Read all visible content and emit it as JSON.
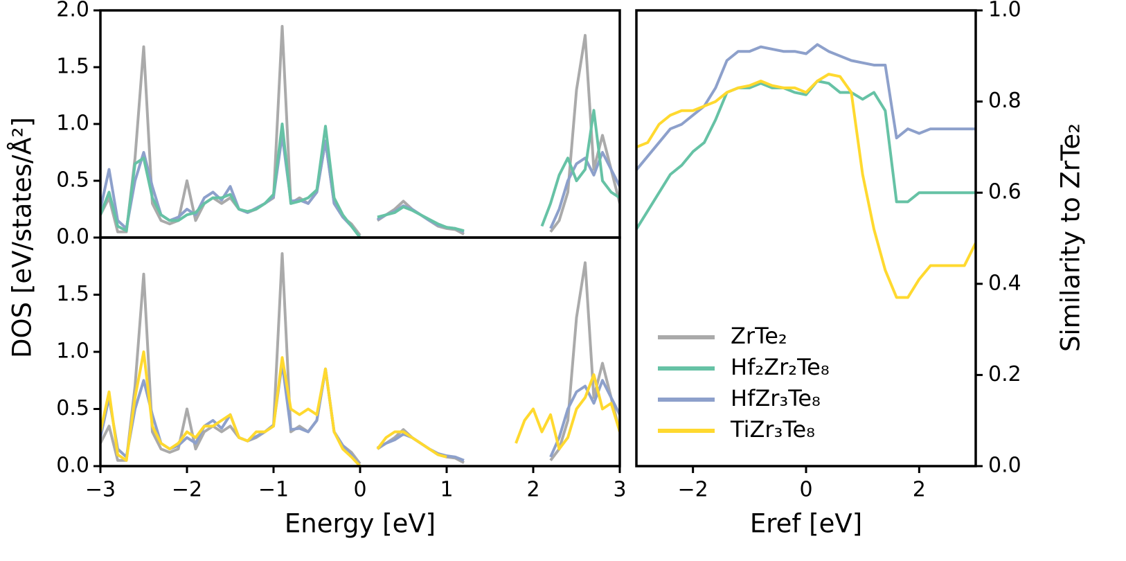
{
  "chart_data": [
    {
      "type": "line",
      "x": [
        -3,
        -2.9,
        -2.8,
        -2.7,
        -2.6,
        -2.5,
        -2.4,
        -2.3,
        -2.2,
        -2.1,
        -2,
        -1.9,
        -1.8,
        -1.7,
        -1.6,
        -1.5,
        -1.4,
        -1.3,
        -1.2,
        -1.1,
        -1,
        -0.9,
        -0.8,
        -0.7,
        -0.6,
        -0.5,
        -0.4,
        -0.3,
        -0.2,
        -0.1,
        0,
        0.1,
        0.2,
        0.3,
        0.4,
        0.5,
        0.6,
        0.7,
        0.8,
        0.9,
        1,
        1.1,
        1.2,
        1.3,
        1.4,
        1.5,
        1.6,
        1.7,
        1.8,
        1.9,
        2,
        2.1,
        2.2,
        2.3,
        2.4,
        2.5,
        2.6,
        2.7,
        2.8,
        2.9,
        3
      ],
      "series": [
        {
          "color": "#aaaaaa",
          "values": [
            0.2,
            0.35,
            0.05,
            0.05,
            0.7,
            1.68,
            0.3,
            0.15,
            0.12,
            0.15,
            0.5,
            0.15,
            0.3,
            0.35,
            0.3,
            0.35,
            0.25,
            0.22,
            0.25,
            0.3,
            0.35,
            1.86,
            0.3,
            0.35,
            0.3,
            0.4,
            0.85,
            0.3,
            0.18,
            0.12,
            0.02,
            null,
            0.15,
            0.2,
            0.25,
            0.32,
            0.25,
            0.2,
            0.15,
            0.1,
            0.08,
            0.07,
            0.03,
            null,
            null,
            null,
            null,
            null,
            null,
            null,
            null,
            null,
            0.05,
            0.15,
            0.4,
            1.3,
            1.78,
            0.6,
            0.9,
            0.6,
            0.3
          ]
        },
        {
          "color": "#8da0cb",
          "values": [
            0.25,
            0.6,
            0.15,
            0.08,
            0.5,
            0.75,
            0.45,
            0.2,
            0.15,
            0.18,
            0.25,
            0.2,
            0.35,
            0.4,
            0.33,
            0.45,
            0.25,
            0.22,
            0.26,
            0.3,
            0.36,
            0.9,
            0.32,
            0.33,
            0.3,
            0.4,
            0.85,
            0.3,
            0.18,
            0.1,
            0,
            null,
            0.16,
            0.2,
            0.23,
            0.28,
            0.25,
            0.2,
            0.15,
            0.11,
            0.09,
            0.08,
            0.05,
            null,
            null,
            null,
            null,
            null,
            null,
            null,
            null,
            null,
            0.08,
            0.25,
            0.5,
            0.65,
            0.7,
            0.55,
            0.75,
            0.6,
            0.45
          ]
        },
        {
          "color": "#66c2a5",
          "values": [
            0.2,
            0.4,
            0.1,
            0.06,
            0.65,
            0.7,
            0.35,
            0.2,
            0.15,
            0.15,
            0.2,
            0.22,
            0.3,
            0.35,
            0.35,
            0.38,
            0.25,
            0.23,
            0.25,
            0.3,
            0.38,
            1,
            0.3,
            0.32,
            0.35,
            0.42,
            0.98,
            0.35,
            0.2,
            0.1,
            0,
            null,
            0.18,
            0.2,
            0.22,
            0.27,
            0.24,
            0.2,
            0.16,
            0.12,
            0.09,
            0.08,
            0.06,
            null,
            null,
            null,
            null,
            null,
            null,
            null,
            null,
            0.1,
            0.3,
            0.55,
            0.7,
            0.5,
            0.6,
            1.12,
            0.5,
            0.4,
            0.35
          ]
        }
      ],
      "xlim": [
        -3,
        3
      ],
      "ylim": [
        0,
        2
      ],
      "yticks": [
        {
          "value": 0,
          "label": "0.0"
        },
        {
          "value": 0.5,
          "label": "0.5"
        },
        {
          "value": 1,
          "label": "1.0"
        },
        {
          "value": 1.5,
          "label": "1.5"
        },
        {
          "value": 2,
          "label": "2.0"
        }
      ]
    },
    {
      "type": "line",
      "x": [
        -3,
        -2.9,
        -2.8,
        -2.7,
        -2.6,
        -2.5,
        -2.4,
        -2.3,
        -2.2,
        -2.1,
        -2,
        -1.9,
        -1.8,
        -1.7,
        -1.6,
        -1.5,
        -1.4,
        -1.3,
        -1.2,
        -1.1,
        -1,
        -0.9,
        -0.8,
        -0.7,
        -0.6,
        -0.5,
        -0.4,
        -0.3,
        -0.2,
        -0.1,
        0,
        0.1,
        0.2,
        0.3,
        0.4,
        0.5,
        0.6,
        0.7,
        0.8,
        0.9,
        1,
        1.1,
        1.2,
        1.3,
        1.4,
        1.5,
        1.6,
        1.7,
        1.8,
        1.9,
        2,
        2.1,
        2.2,
        2.3,
        2.4,
        2.5,
        2.6,
        2.7,
        2.8,
        2.9,
        3
      ],
      "series": [
        {
          "color": "#aaaaaa",
          "values": [
            0.2,
            0.35,
            0.05,
            0.05,
            0.7,
            1.68,
            0.3,
            0.15,
            0.12,
            0.15,
            0.5,
            0.15,
            0.3,
            0.35,
            0.3,
            0.35,
            0.25,
            0.22,
            0.25,
            0.3,
            0.35,
            1.86,
            0.3,
            0.35,
            0.3,
            0.4,
            0.85,
            0.3,
            0.18,
            0.12,
            0.02,
            null,
            0.15,
            0.2,
            0.25,
            0.32,
            0.25,
            0.2,
            0.15,
            0.1,
            0.08,
            0.07,
            0.03,
            null,
            null,
            null,
            null,
            null,
            null,
            null,
            null,
            null,
            0.05,
            0.15,
            0.4,
            1.3,
            1.78,
            0.6,
            0.9,
            0.6,
            0.3
          ]
        },
        {
          "color": "#8da0cb",
          "values": [
            0.25,
            0.6,
            0.15,
            0.08,
            0.5,
            0.75,
            0.45,
            0.2,
            0.15,
            0.18,
            0.25,
            0.2,
            0.35,
            0.4,
            0.33,
            0.45,
            0.25,
            0.22,
            0.26,
            0.3,
            0.36,
            0.9,
            0.32,
            0.33,
            0.3,
            0.4,
            0.85,
            0.3,
            0.18,
            0.1,
            0,
            null,
            0.16,
            0.2,
            0.23,
            0.28,
            0.25,
            0.2,
            0.15,
            0.11,
            0.09,
            0.08,
            0.05,
            null,
            null,
            null,
            null,
            null,
            null,
            null,
            null,
            null,
            0.08,
            0.25,
            0.5,
            0.65,
            0.7,
            0.55,
            0.75,
            0.6,
            0.45
          ]
        },
        {
          "color": "#ffd92f",
          "values": [
            0.3,
            0.65,
            0.1,
            0.05,
            0.6,
            1,
            0.35,
            0.2,
            0.15,
            0.2,
            0.3,
            0.25,
            0.35,
            0.35,
            0.4,
            0.45,
            0.25,
            0.22,
            0.3,
            0.3,
            0.35,
            0.95,
            0.5,
            0.45,
            0.5,
            0.45,
            0.85,
            0.3,
            0.15,
            0.08,
            0,
            null,
            0.15,
            0.25,
            0.3,
            0.3,
            0.25,
            0.2,
            0.15,
            0.1,
            0.08,
            null,
            null,
            null,
            null,
            null,
            null,
            null,
            0.2,
            0.4,
            0.5,
            0.3,
            0.45,
            0.15,
            0.25,
            0.5,
            0.6,
            0.8,
            0.5,
            0.55,
            0.3
          ]
        }
      ],
      "xlim": [
        -3,
        3
      ],
      "ylim": [
        0,
        2
      ],
      "xticks": [
        {
          "value": -3,
          "label": "−3"
        },
        {
          "value": -2,
          "label": "−2"
        },
        {
          "value": -1,
          "label": "−1"
        },
        0,
        1,
        2,
        3
      ],
      "yticks": [
        {
          "value": 0,
          "label": "0.0"
        },
        {
          "value": 0.5,
          "label": "0.5"
        },
        {
          "value": 1,
          "label": "1.0"
        },
        {
          "value": 1.5,
          "label": "1.5"
        }
      ],
      "xlabel": "Energy [eV]",
      "ylabel": "DOS [eV/states/Å²]"
    },
    {
      "type": "line",
      "x": [
        -3,
        -2.8,
        -2.6,
        -2.4,
        -2.2,
        -2,
        -1.8,
        -1.6,
        -1.4,
        -1.2,
        -1,
        -0.8,
        -0.6,
        -0.4,
        -0.2,
        0,
        0.2,
        0.4,
        0.6,
        0.8,
        1,
        1.2,
        1.4,
        1.6,
        1.8,
        2,
        2.2,
        2.4,
        2.6,
        2.8,
        3
      ],
      "series": [
        {
          "color": "#66c2a5",
          "values": [
            0.52,
            0.56,
            0.6,
            0.64,
            0.66,
            0.69,
            0.71,
            0.76,
            0.82,
            0.83,
            0.83,
            0.84,
            0.83,
            0.83,
            0.82,
            0.815,
            0.845,
            0.84,
            0.82,
            0.82,
            0.805,
            0.82,
            0.78,
            0.58,
            0.58,
            0.6,
            0.6,
            0.6,
            0.6,
            0.6,
            0.6
          ]
        },
        {
          "color": "#8da0cb",
          "values": [
            0.65,
            0.68,
            0.71,
            0.74,
            0.75,
            0.77,
            0.79,
            0.83,
            0.89,
            0.91,
            0.91,
            0.92,
            0.915,
            0.91,
            0.91,
            0.905,
            0.925,
            0.91,
            0.9,
            0.89,
            0.885,
            0.88,
            0.88,
            0.72,
            0.74,
            0.73,
            0.74,
            0.74,
            0.74,
            0.74,
            0.74
          ]
        },
        {
          "color": "#ffd92f",
          "values": [
            0.7,
            0.71,
            0.75,
            0.77,
            0.78,
            0.78,
            0.79,
            0.8,
            0.82,
            0.83,
            0.835,
            0.845,
            0.835,
            0.83,
            0.83,
            0.82,
            0.845,
            0.86,
            0.855,
            0.82,
            0.64,
            0.52,
            0.43,
            0.37,
            0.37,
            0.41,
            0.44,
            0.44,
            0.44,
            0.44,
            0.49
          ]
        }
      ],
      "xlim": [
        -3,
        3
      ],
      "ylim": [
        0,
        1
      ],
      "xticks": [
        {
          "value": -2,
          "label": "−2"
        },
        0,
        2
      ],
      "yticks": [
        {
          "value": 0,
          "label": "0.0"
        },
        {
          "value": 0.2,
          "label": "0.2"
        },
        {
          "value": 0.4,
          "label": "0.4"
        },
        {
          "value": 0.6,
          "label": "0.6"
        },
        {
          "value": 0.8,
          "label": "0.8"
        },
        {
          "value": 1,
          "label": "1.0"
        }
      ],
      "yaxis_side": "right",
      "xlabel": "Eref [eV]",
      "ylabel": "Similarity to ZrTe₂",
      "legend": [
        {
          "name": "ZrTe₂",
          "color": "#aaaaaa"
        },
        {
          "name": "Hf₂Zr₂Te₈",
          "color": "#66c2a5"
        },
        {
          "name": "HfZr₃Te₈",
          "color": "#8da0cb"
        },
        {
          "name": "TiZr₃Te₈",
          "color": "#ffd92f"
        }
      ]
    }
  ]
}
